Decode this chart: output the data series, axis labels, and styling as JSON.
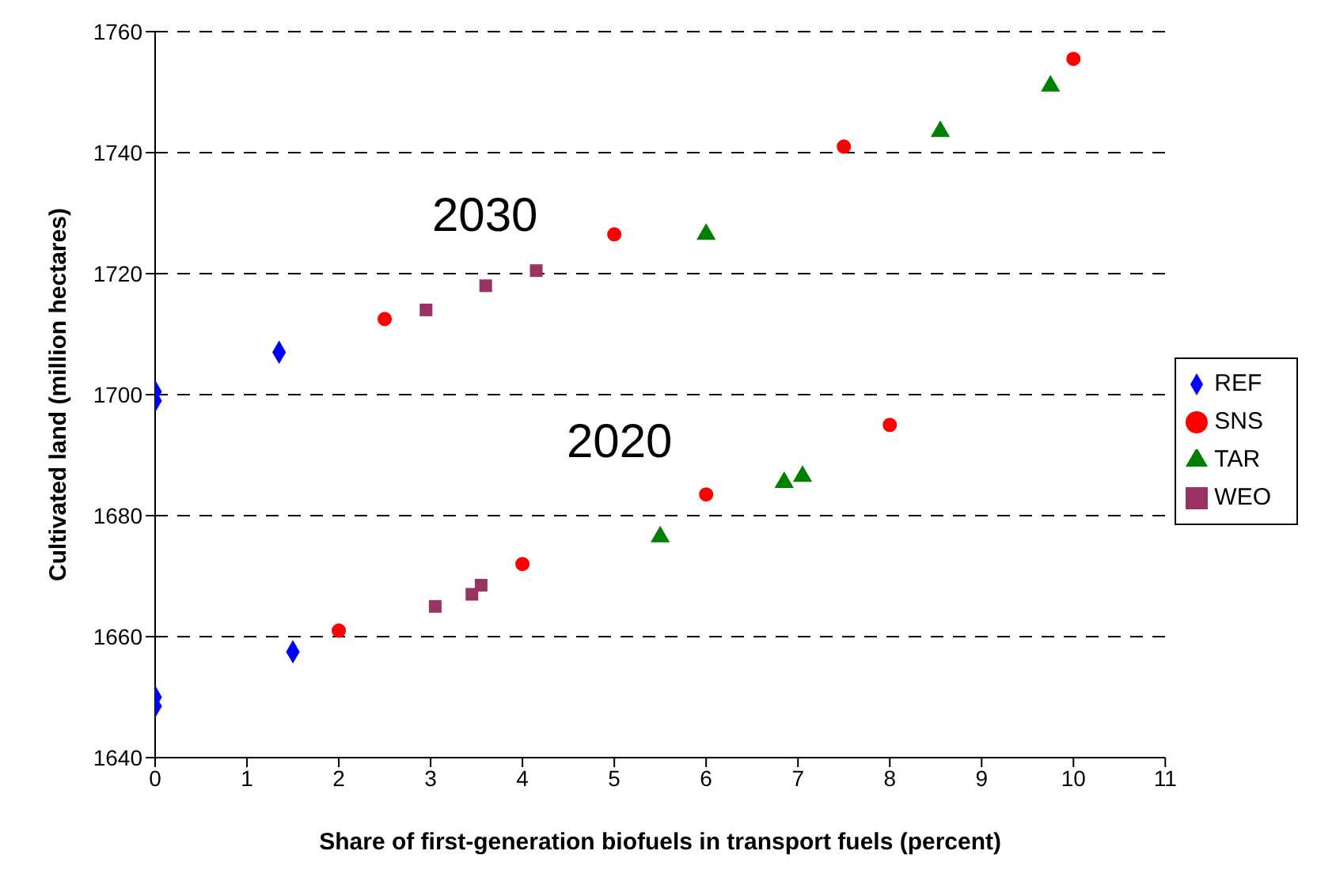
{
  "chart_data": {
    "type": "scatter",
    "xlabel": "Share of first-generation biofuels in transport fuels (percent)",
    "ylabel": "Cultivated land (million hectares)",
    "xlim": [
      0,
      11
    ],
    "xticks": [
      0,
      1,
      2,
      3,
      4,
      5,
      6,
      7,
      8,
      9,
      10,
      11
    ],
    "ylim": [
      1640,
      1760
    ],
    "yticks": [
      1640,
      1660,
      1680,
      1700,
      1720,
      1740,
      1760
    ],
    "grid": "y",
    "legend": "right",
    "annotations": [
      "2030",
      "2020"
    ],
    "series": [
      {
        "name": "REF",
        "color": "#0000ff",
        "marker": "diamond",
        "x": [
          0,
          0,
          1.35,
          0,
          0,
          1.5
        ],
        "values": [
          1700.5,
          1699,
          1707,
          1650,
          1648.5,
          1657.5
        ]
      },
      {
        "name": "WEO",
        "color": "#993366",
        "marker": "square",
        "x": [
          2.95,
          3.6,
          4.15,
          3.05,
          3.45,
          3.55
        ],
        "values": [
          1714,
          1718,
          1720.5,
          1665,
          1667,
          1668.5
        ]
      },
      {
        "name": "TAR",
        "color": "#008000",
        "marker": "triangle",
        "x": [
          6,
          8.55,
          9.75,
          5.5,
          6.85,
          7.05
        ],
        "values": [
          1726.5,
          1743.5,
          1751,
          1676.5,
          1685.5,
          1686.5
        ]
      },
      {
        "name": "SNS",
        "color": "#ff0000",
        "marker": "circle",
        "x": [
          2.5,
          5,
          7.5,
          10,
          2,
          4,
          6,
          8
        ],
        "values": [
          1712.5,
          1726.5,
          1741,
          1755.5,
          1661,
          1672,
          1683.5,
          1695
        ]
      }
    ]
  }
}
